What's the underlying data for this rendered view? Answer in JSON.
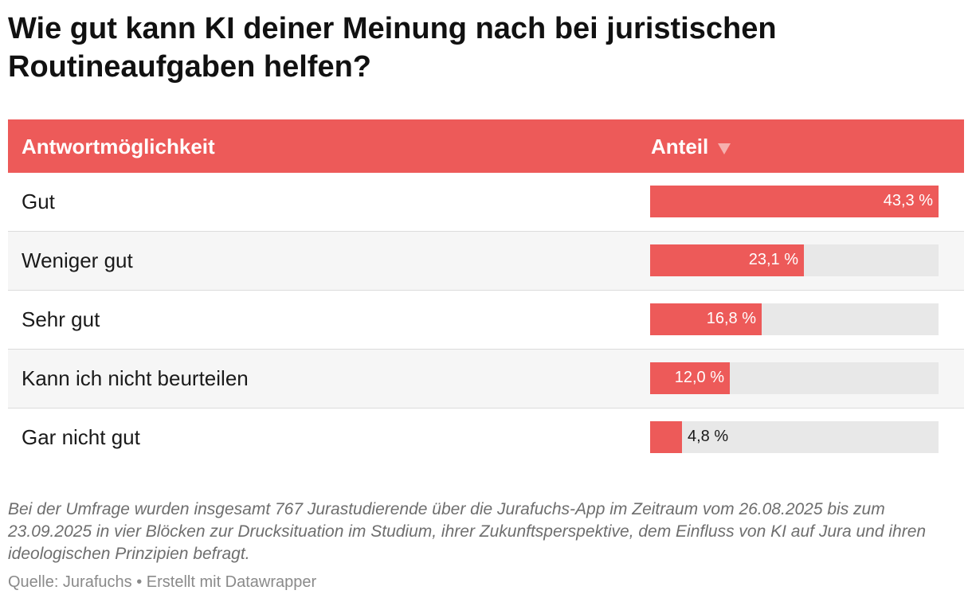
{
  "title": "Wie gut kann KI deiner Meinung nach bei juristischen Routineaufgaben helfen?",
  "table_header": {
    "answer_label": "Antwortmöglichkeit",
    "share_label": "Anteil",
    "sort_icon": "sort-desc-triangle-icon"
  },
  "chart_data": {
    "type": "bar",
    "title": "Wie gut kann KI deiner Meinung nach bei juristischen Routineaufgaben helfen?",
    "categories": [
      "Gut",
      "Weniger gut",
      "Sehr gut",
      "Kann ich nicht beurteilen",
      "Gar nicht gut"
    ],
    "values": [
      43.3,
      23.1,
      16.8,
      12.0,
      4.8
    ],
    "value_labels": [
      "43,3 %",
      "23,1 %",
      "16,8 %",
      "12,0 %",
      "4,8 %"
    ],
    "xlabel": "Anteil",
    "ylabel": "Antwortmöglichkeit",
    "xlim": [
      0,
      43.3
    ],
    "orientation": "horizontal",
    "sort": "descending",
    "colors": {
      "bar": "#ed5a59",
      "track": "#e8e8e8",
      "header": "#ed5a59"
    }
  },
  "notes": "Bei der Umfrage wurden insgesamt 767 Jurastudierende über die Jurafuchs-App im Zeitraum vom 26.08.2025 bis zum 23.09.2025 in vier Blöcken zur Drucksituation im Studium, ihrer Zukunftsperspektive, dem Einfluss von KI auf Jura und ihren ideologischen Prinzipien befragt.",
  "footer": {
    "source": "Quelle: Jurafuchs",
    "separator": "•",
    "credit": "Erstellt mit Datawrapper"
  }
}
